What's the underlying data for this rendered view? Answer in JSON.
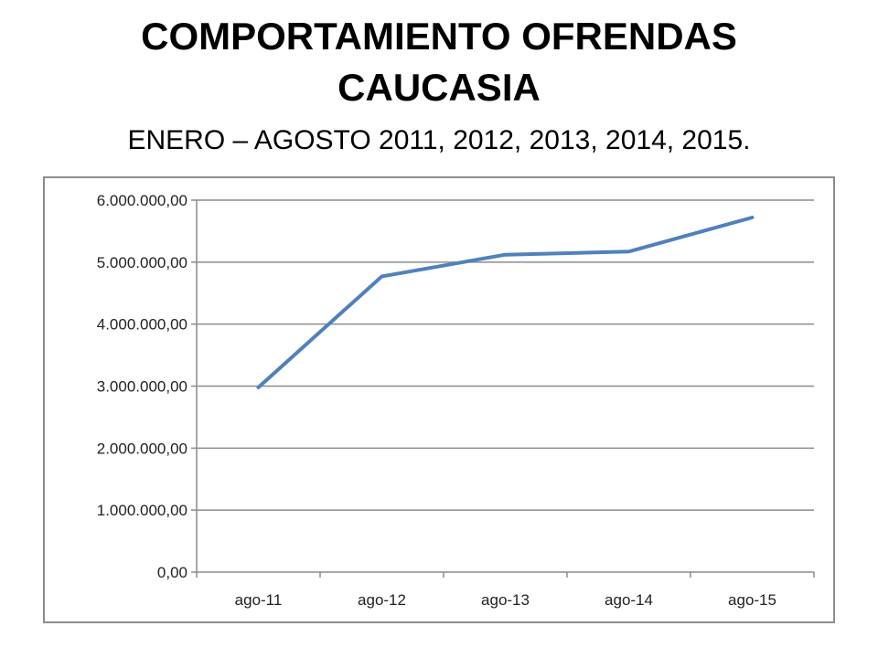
{
  "title": {
    "line1": "COMPORTAMIENTO OFRENDAS",
    "line2": "CAUCASIA",
    "subtitle": "ENERO – AGOSTO 2011, 2012, 2013, 2014, 2015."
  },
  "colors": {
    "series": "#4f81bd",
    "gridline": "#8c8c8c",
    "frame": "#8c8c8c"
  },
  "chart_data": {
    "type": "line",
    "title": "COMPORTAMIENTO OFRENDAS CAUCASIA",
    "subtitle": "ENERO – AGOSTO 2011, 2012, 2013, 2014, 2015.",
    "categories": [
      "ago-11",
      "ago-12",
      "ago-13",
      "ago-14",
      "ago-15"
    ],
    "series": [
      {
        "values": [
          2980000,
          4770000,
          5120000,
          5170000,
          5720000
        ]
      }
    ],
    "y_ticks": [
      {
        "value": 0,
        "label": "0,00"
      },
      {
        "value": 1000000,
        "label": "1.000.000,00"
      },
      {
        "value": 2000000,
        "label": "2.000.000,00"
      },
      {
        "value": 3000000,
        "label": "3.000.000,00"
      },
      {
        "value": 4000000,
        "label": "4.000.000,00"
      },
      {
        "value": 5000000,
        "label": "5.000.000,00"
      },
      {
        "value": 6000000,
        "label": "6.000.000,00"
      }
    ],
    "ylim": [
      0,
      6000000
    ],
    "xlabel": "",
    "ylabel": "",
    "grid": true,
    "legend": "none"
  }
}
